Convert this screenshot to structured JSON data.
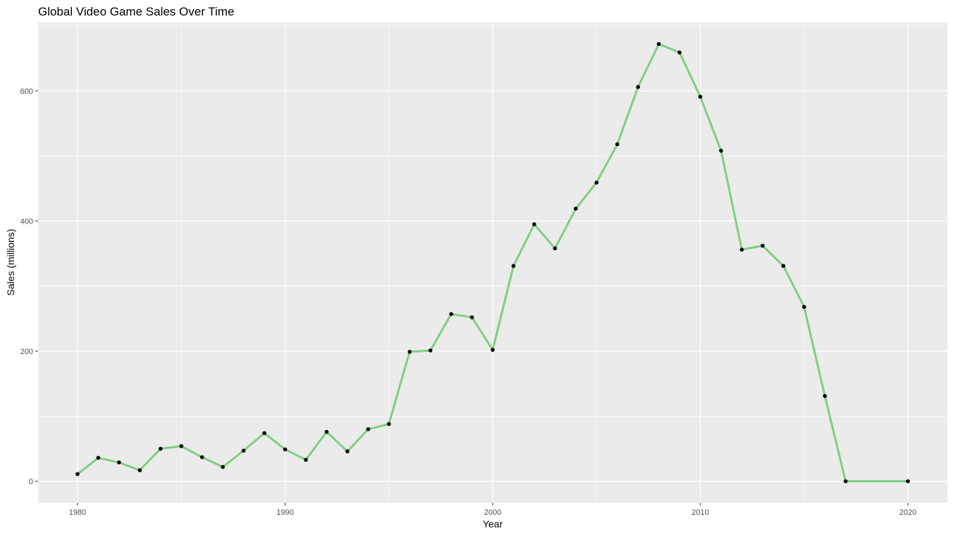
{
  "chart_data": {
    "type": "line",
    "title": "Global Video Game Sales Over Time",
    "xlabel": "Year",
    "ylabel": "Sales (millions)",
    "xlim": [
      1978.1,
      2021.9
    ],
    "ylim": [
      -33,
      705
    ],
    "x_ticks": [
      1980,
      1990,
      2000,
      2010,
      2020
    ],
    "y_ticks": [
      0,
      200,
      400,
      600
    ],
    "grid": true,
    "legend": "none",
    "colors": {
      "line": "#7fcf7f",
      "point": "#000000",
      "panel": "#ebebeb",
      "grid": "#ffffff",
      "tick_text": "#4d4d4d"
    },
    "series": [
      {
        "x": [
          1980,
          1981,
          1982,
          1983,
          1984,
          1985,
          1986,
          1987,
          1988,
          1989,
          1990,
          1991,
          1992,
          1993,
          1994,
          1995,
          1996,
          1997,
          1998,
          1999,
          2000,
          2001,
          2002,
          2003,
          2004,
          2005,
          2006,
          2007,
          2008,
          2009,
          2010,
          2011,
          2012,
          2013,
          2014,
          2015,
          2016,
          2017,
          2020
        ],
        "values": [
          11,
          36,
          29,
          17,
          50,
          54,
          37,
          22,
          47,
          74,
          49,
          33,
          76,
          46,
          80,
          88,
          199,
          201,
          257,
          252,
          202,
          331,
          395,
          358,
          419,
          459,
          518,
          606,
          672,
          659,
          591,
          508,
          356,
          362,
          331,
          268,
          131,
          0,
          0
        ]
      }
    ]
  }
}
